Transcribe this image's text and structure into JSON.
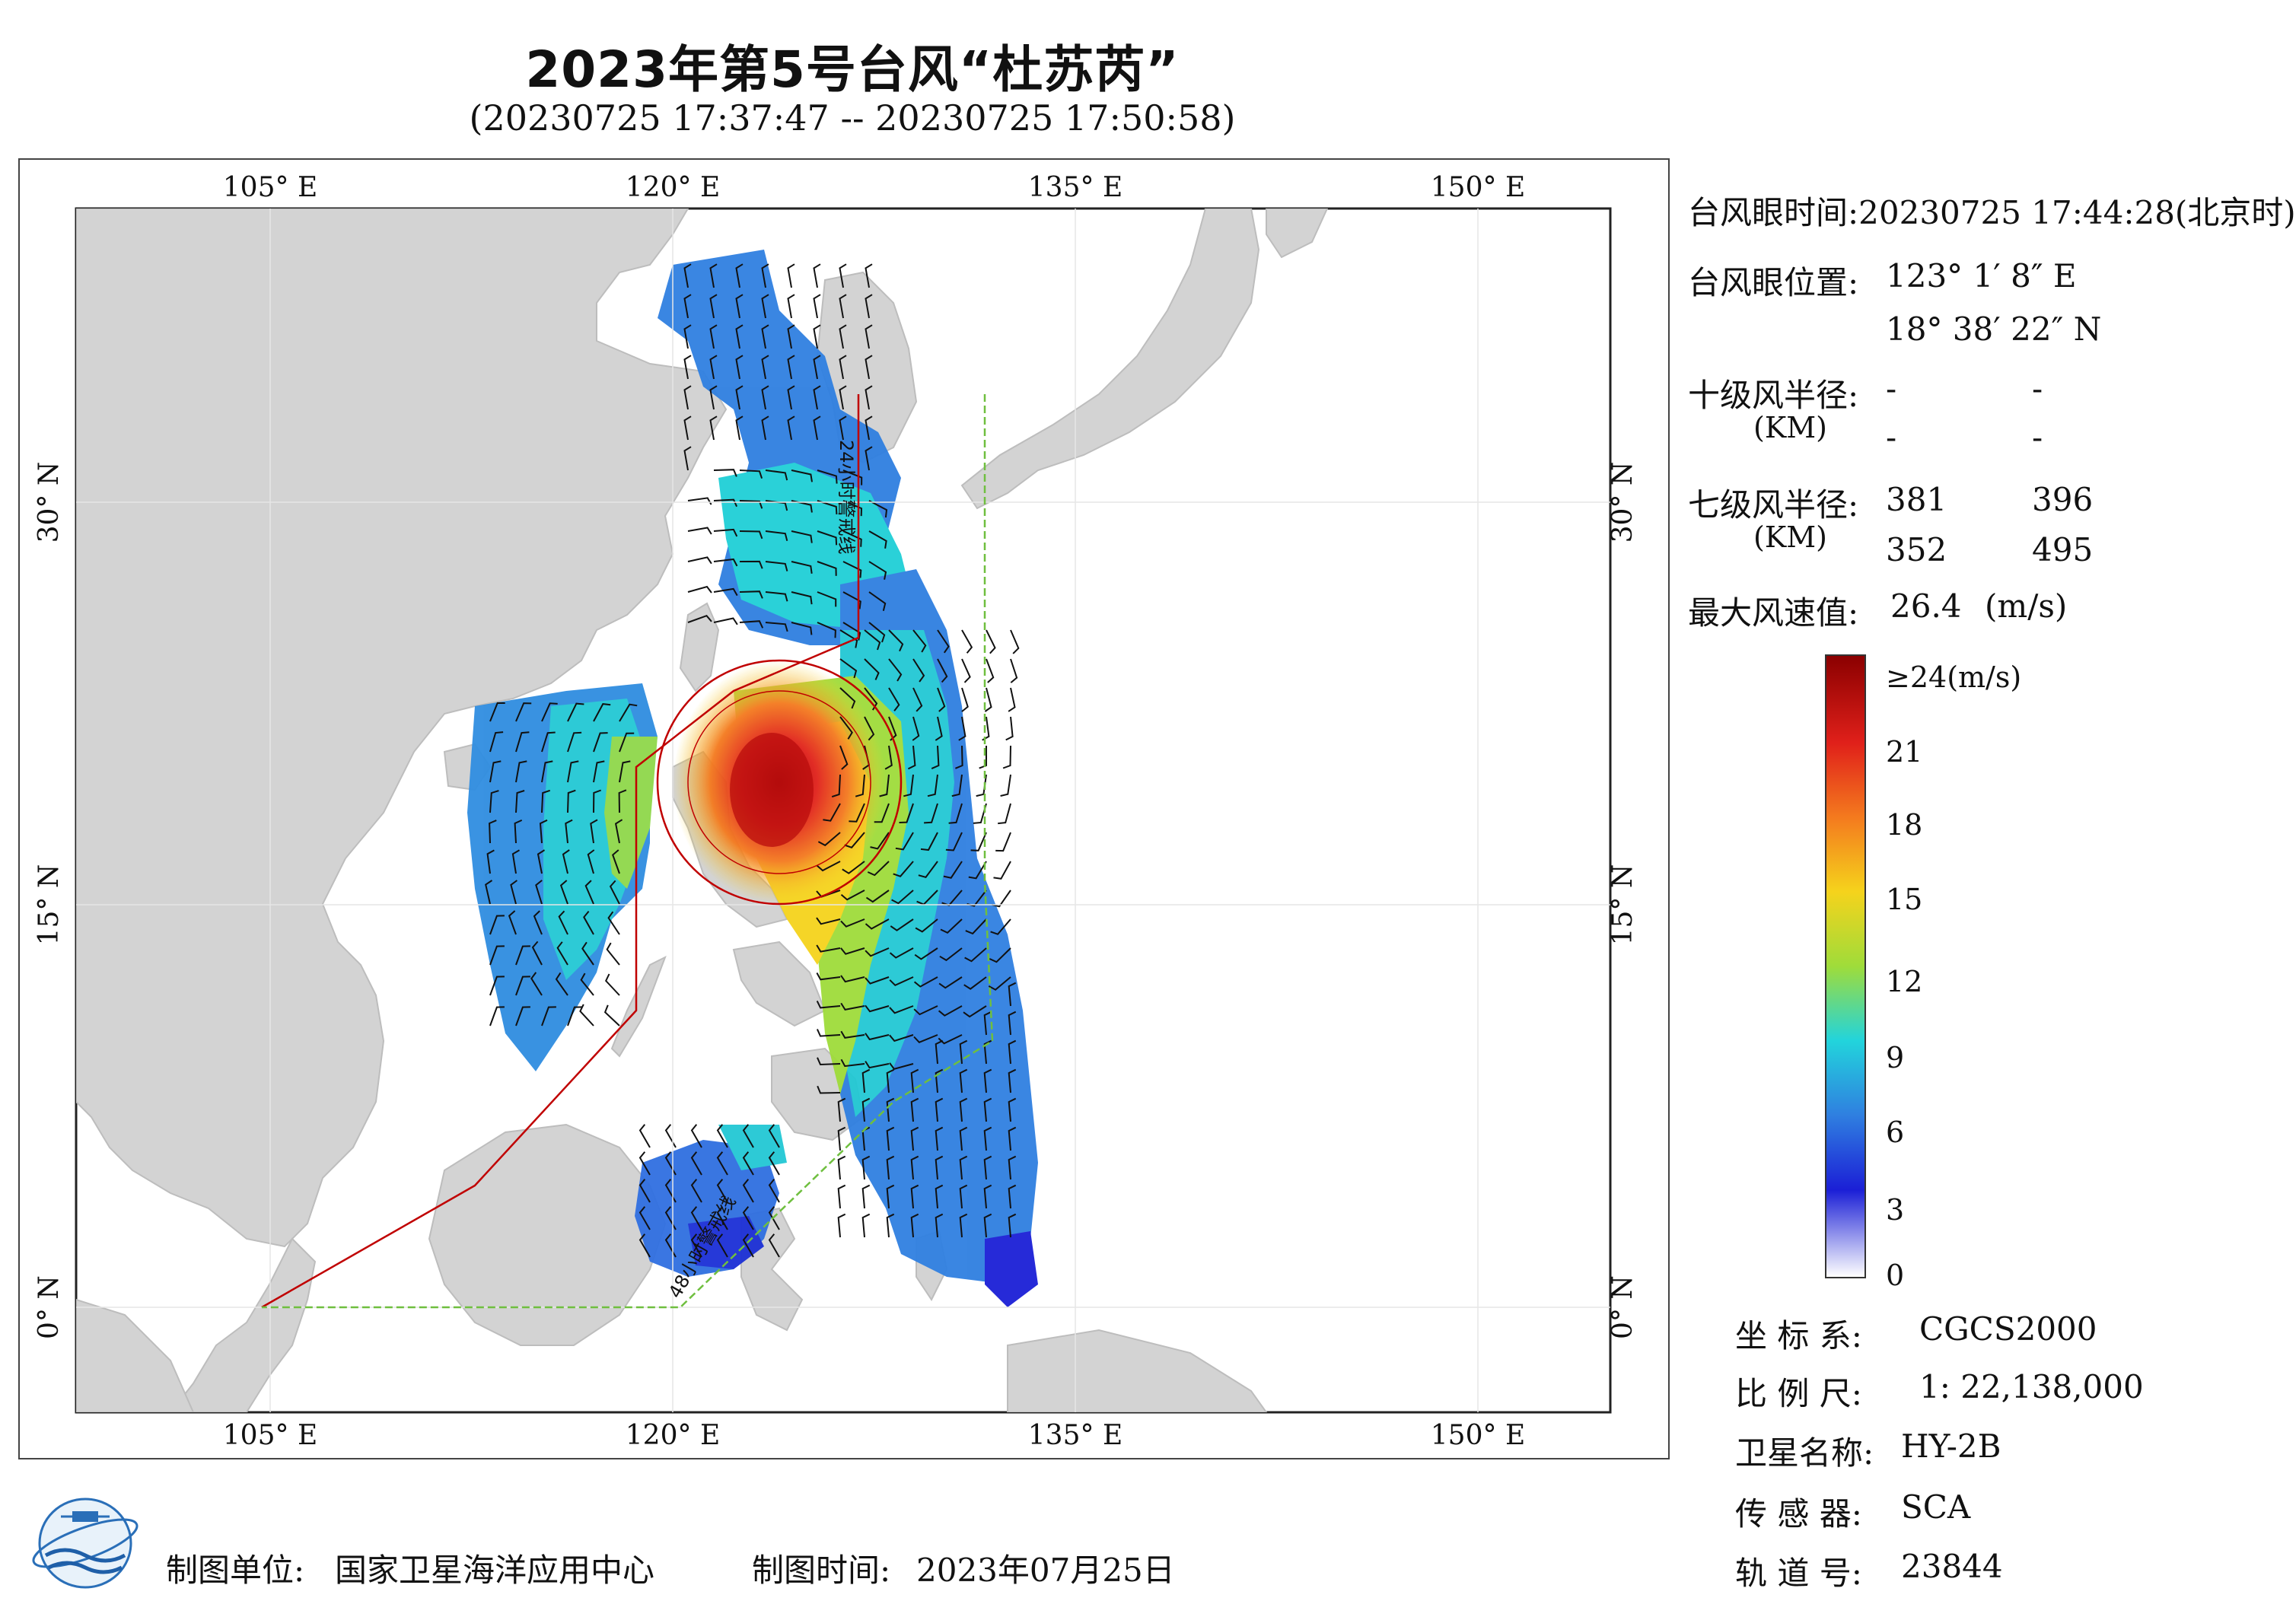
{
  "title": "2023年第5号台风“杜苏芮”",
  "subtitle": "(20230725 17:37:47 -- 20230725 17:50:58)",
  "map": {
    "lon_labels_top": [
      "105° E",
      "120° E",
      "135° E",
      "150° E"
    ],
    "lon_labels_bottom": [
      "105° E",
      "120° E",
      "135° E",
      "150° E"
    ],
    "lat_labels_left": [
      "30° N",
      "15° N",
      "0° N"
    ],
    "lat_labels_right": [
      "30° N",
      "15° N",
      "0° N"
    ],
    "line_label_24h": "24小时警戒线",
    "line_label_48h": "48小时警戒线",
    "extent": {
      "lon": [
        98,
        155
      ],
      "lat": [
        -4,
        41
      ]
    },
    "colors": {
      "land": "#d3d3d3",
      "sea": "#ffffff",
      "warning_24h": "#c00000",
      "warning_48h": "#6fbf3f"
    }
  },
  "info": {
    "eye_time_label": "台风眼时间:",
    "eye_time_value": "20230725 17:44:28(北京时)",
    "eye_pos_label": "台风眼位置:",
    "eye_lon": "123° 1′ 8″ E",
    "eye_lat": "18° 38′ 22″ N",
    "r10_label": "十级风半径:",
    "r10_unit": "(KM)",
    "r10_values": [
      "-",
      "-",
      "-",
      "-"
    ],
    "r7_label": "七级风半径:",
    "r7_unit": "(KM)",
    "r7_values": [
      "381",
      "396",
      "352",
      "495"
    ],
    "max_wind_label": "最大风速值:",
    "max_wind_value": "26.4",
    "max_wind_unit": "(m/s)"
  },
  "colorbar": {
    "labels": [
      "≥24(m/s)",
      "21",
      "18",
      "15",
      "12",
      "9",
      "6",
      "3",
      "0"
    ],
    "stops": [
      "#8b0000",
      "#e0201a",
      "#f47a1e",
      "#f5d31c",
      "#9fdc3a",
      "#22d4dc",
      "#2f7fe0",
      "#1b1fd6",
      "#ffffff"
    ]
  },
  "meta": {
    "coord_label": "坐 标 系:",
    "coord_value": "CGCS2000",
    "scale_label": "比 例 尺:",
    "scale_value": "1: 22,138,000",
    "satellite_label": "卫星名称:",
    "satellite_value": "HY-2B",
    "sensor_label": "传 感 器:",
    "sensor_value": "SCA",
    "orbit_label": "轨 道 号:",
    "orbit_value": "23844"
  },
  "footer": {
    "unit_label": "制图单位:",
    "unit_value": "国家卫星海洋应用中心",
    "time_label": "制图时间:",
    "time_value": "2023年07月25日"
  }
}
